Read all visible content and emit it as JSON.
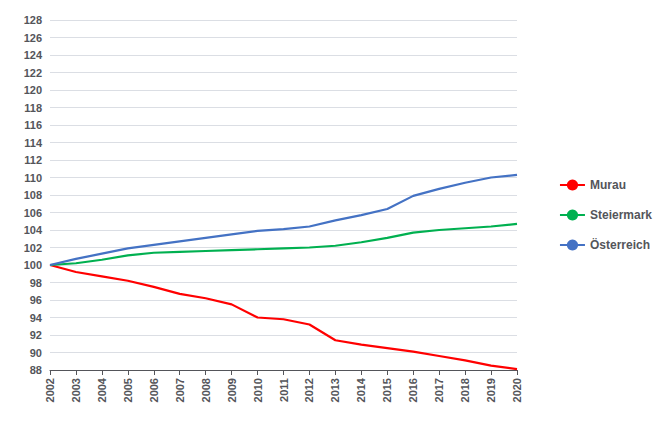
{
  "chart_data": {
    "type": "line",
    "x": [
      2002,
      2003,
      2004,
      2005,
      2006,
      2007,
      2008,
      2009,
      2010,
      2011,
      2012,
      2013,
      2014,
      2015,
      2016,
      2017,
      2018,
      2019,
      2020
    ],
    "series": [
      {
        "name": "Murau",
        "color": "#ff0000",
        "values": [
          100,
          99.2,
          98.7,
          98.2,
          97.5,
          96.7,
          96.2,
          95.5,
          94.0,
          93.8,
          93.2,
          91.4,
          90.9,
          90.5,
          90.1,
          89.6,
          89.1,
          88.5,
          88.1
        ]
      },
      {
        "name": "Steiermark",
        "color": "#00b050",
        "values": [
          100,
          100.2,
          100.6,
          101.1,
          101.4,
          101.5,
          101.6,
          101.7,
          101.8,
          101.9,
          102.0,
          102.2,
          102.6,
          103.1,
          103.7,
          104.0,
          104.2,
          104.4,
          104.7
        ]
      },
      {
        "name": "Österreich",
        "color": "#4472c4",
        "values": [
          100,
          100.7,
          101.3,
          101.9,
          102.3,
          102.7,
          103.1,
          103.5,
          103.9,
          104.1,
          104.4,
          105.1,
          105.7,
          106.4,
          107.9,
          108.7,
          109.4,
          110.0,
          110.3
        ]
      }
    ],
    "xlim": [
      2002,
      2020
    ],
    "xticks": [
      2002,
      2003,
      2004,
      2005,
      2006,
      2007,
      2008,
      2009,
      2010,
      2011,
      2012,
      2013,
      2014,
      2015,
      2016,
      2017,
      2018,
      2019,
      2020
    ],
    "ylim": [
      88,
      128
    ],
    "yticks": [
      88,
      90,
      92,
      94,
      96,
      98,
      100,
      102,
      104,
      106,
      108,
      110,
      112,
      114,
      116,
      118,
      120,
      122,
      124,
      126,
      128
    ],
    "grid": true,
    "legend": "right"
  }
}
